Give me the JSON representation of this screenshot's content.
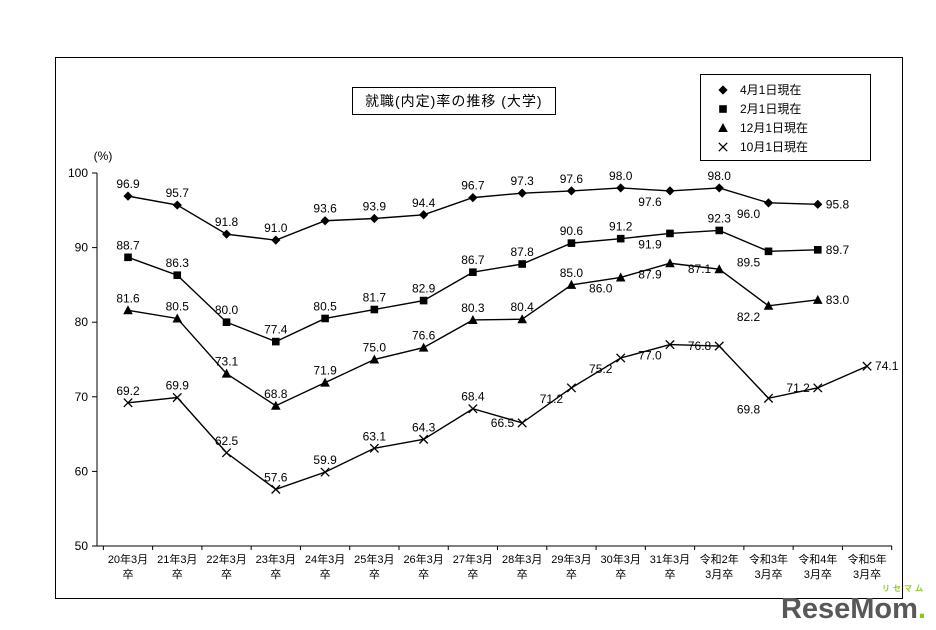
{
  "chart_data": {
    "type": "line",
    "title": "就職(内定)率の推移 (大学)",
    "ylabel": "(%)",
    "ylim": [
      50,
      100
    ],
    "yticks": [
      50,
      60,
      70,
      80,
      90,
      100
    ],
    "grid": false,
    "legend_position": "top-right",
    "categories": [
      [
        "20年3月",
        "卒"
      ],
      [
        "21年3月",
        "卒"
      ],
      [
        "22年3月",
        "卒"
      ],
      [
        "23年3月",
        "卒"
      ],
      [
        "24年3月",
        "卒"
      ],
      [
        "25年3月",
        "卒"
      ],
      [
        "26年3月",
        "卒"
      ],
      [
        "27年3月",
        "卒"
      ],
      [
        "28年3月",
        "卒"
      ],
      [
        "29年3月",
        "卒"
      ],
      [
        "30年3月",
        "卒"
      ],
      [
        "31年3月",
        "卒"
      ],
      [
        "令和2年",
        "3月卒"
      ],
      [
        "令和3年",
        "3月卒"
      ],
      [
        "令和4年",
        "3月卒"
      ],
      [
        "令和5年",
        "3月卒"
      ]
    ],
    "series": [
      {
        "name": "4月1日現在",
        "marker": "diamond",
        "values": [
          96.9,
          95.7,
          91.8,
          91.0,
          93.6,
          93.9,
          94.4,
          96.7,
          97.3,
          97.6,
          98.0,
          97.6,
          98.0,
          96.0,
          95.8
        ],
        "label_pos": [
          "a",
          "a",
          "a",
          "a",
          "a",
          "a",
          "a",
          "a",
          "a",
          "a",
          "a",
          "bl",
          "a",
          "bl",
          "r"
        ]
      },
      {
        "name": "2月1日現在",
        "marker": "square",
        "values": [
          88.7,
          86.3,
          80.0,
          77.4,
          80.5,
          81.7,
          82.9,
          86.7,
          87.8,
          90.6,
          91.2,
          91.9,
          92.3,
          89.5,
          89.7
        ],
        "label_pos": [
          "a",
          "a",
          "a",
          "a",
          "a",
          "a",
          "a",
          "a",
          "a",
          "a",
          "a",
          "bl",
          "a",
          "bl",
          "r"
        ]
      },
      {
        "name": "12月1日現在",
        "marker": "triangle",
        "values": [
          81.6,
          80.5,
          73.1,
          68.8,
          71.9,
          75.0,
          76.6,
          80.3,
          80.4,
          85.0,
          86.0,
          87.9,
          87.1,
          82.2,
          83.0
        ],
        "label_pos": [
          "a",
          "a",
          "a",
          "a",
          "a",
          "a",
          "a",
          "a",
          "a",
          "a",
          "bl",
          "bl",
          "l",
          "bl",
          "r"
        ]
      },
      {
        "name": "10月1日現在",
        "marker": "x",
        "values": [
          69.2,
          69.9,
          62.5,
          57.6,
          59.9,
          63.1,
          64.3,
          68.4,
          66.5,
          71.2,
          75.2,
          77.0,
          76.8,
          69.8,
          71.2,
          74.1
        ],
        "label_pos": [
          "a",
          "a",
          "a",
          "a",
          "a",
          "a",
          "a",
          "a",
          "l",
          "bl",
          "bl",
          "bl",
          "l",
          "bl",
          "l",
          "r"
        ]
      }
    ]
  },
  "logo": {
    "ruby": "リセマム",
    "text": "ReseMom",
    "dot": ".",
    "accent_color": "#8fc31f",
    "text_color": "#595757"
  }
}
